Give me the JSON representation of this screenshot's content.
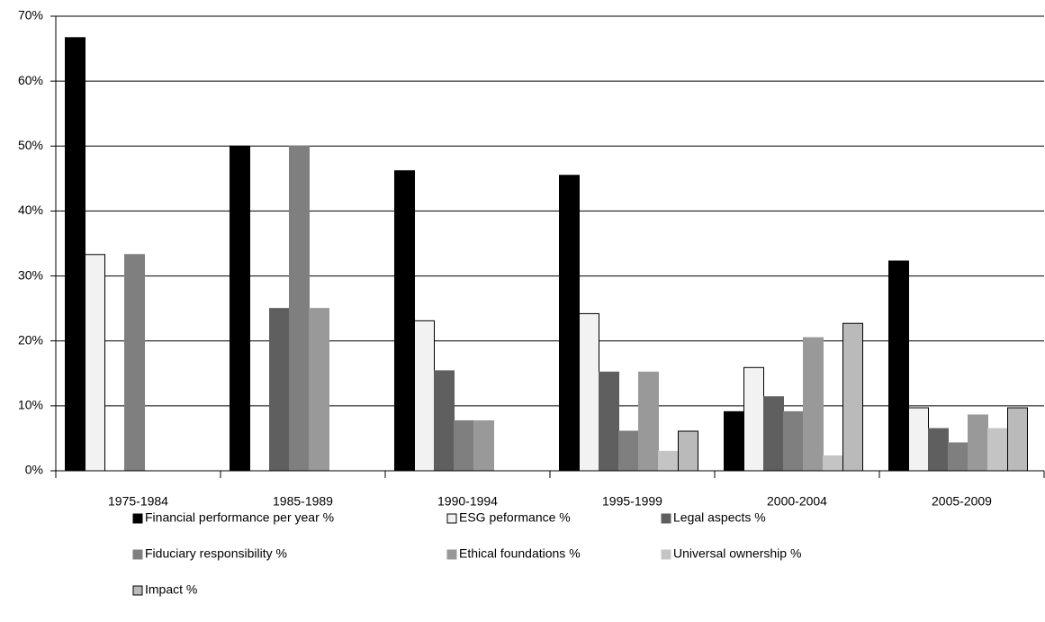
{
  "chart_data": {
    "type": "bar",
    "categories": [
      "1975-1984",
      "1985-1989",
      "1990-1994",
      "1995-1999",
      "2000-2004",
      "2005-2009"
    ],
    "series": [
      {
        "name": "Financial performance per year %",
        "color": "#000000",
        "edgecolor": "#000000",
        "values": [
          66.7,
          50,
          46.2,
          45.5,
          9.1,
          32.3
        ]
      },
      {
        "name": "ESG peformance %",
        "color": "#f2f2f2",
        "edgecolor": "#000000",
        "values": [
          33.3,
          0,
          23.1,
          24.2,
          15.9,
          9.7
        ]
      },
      {
        "name": "Legal aspects %",
        "color": "#5f5f5f",
        "edgecolor": "#5f5f5f",
        "values": [
          0,
          25,
          15.4,
          15.2,
          11.4,
          6.5
        ]
      },
      {
        "name": "Fiduciary responsibility %",
        "color": "#7f7f7f",
        "edgecolor": "#7f7f7f",
        "values": [
          33.3,
          50,
          7.7,
          6.1,
          9.1,
          4.3
        ]
      },
      {
        "name": "Ethical foundations %",
        "color": "#999999",
        "edgecolor": "#999999",
        "values": [
          0,
          25,
          7.7,
          15.2,
          20.5,
          8.6
        ]
      },
      {
        "name": "Universal ownership %",
        "color": "#c4c4c4",
        "edgecolor": "#c4c4c4",
        "values": [
          0,
          0,
          0,
          3.0,
          2.3,
          6.5
        ]
      },
      {
        "name": "Impact %",
        "color": "#bababa",
        "edgecolor": "#000000",
        "values": [
          0,
          0,
          0,
          6.1,
          22.7,
          9.7
        ]
      }
    ],
    "ylim": [
      0,
      70
    ],
    "yticks": [
      {
        "value": 0,
        "label": "0%"
      },
      {
        "value": 10,
        "label": "10%"
      },
      {
        "value": 20,
        "label": "20%"
      },
      {
        "value": 30,
        "label": "30%"
      },
      {
        "value": 40,
        "label": "40%"
      },
      {
        "value": 50,
        "label": "50%"
      },
      {
        "value": 60,
        "label": "60%"
      },
      {
        "value": 70,
        "label": "70%"
      }
    ],
    "grid": true,
    "legend": "bottom"
  }
}
